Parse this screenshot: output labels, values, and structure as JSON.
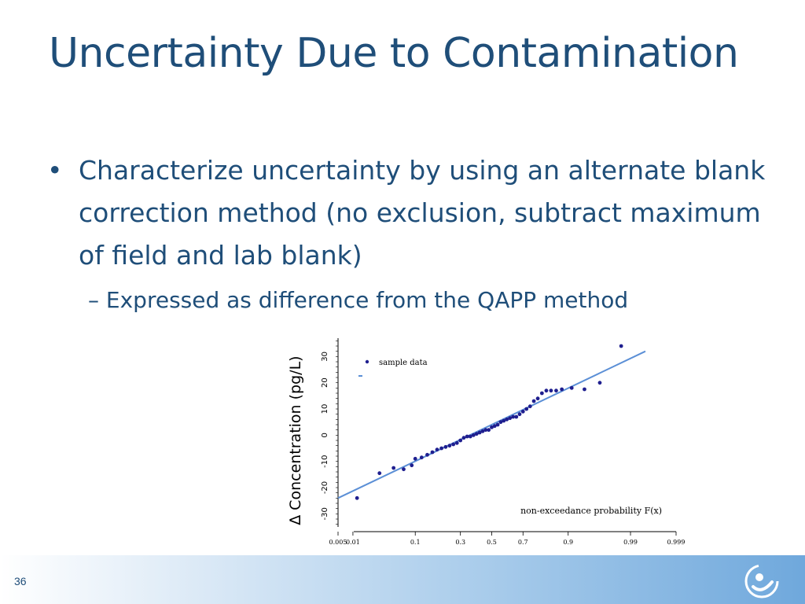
{
  "slide": {
    "title": "Uncertainty Due to Contamination",
    "bullet": "Characterize uncertainty by using an alternate blank correction method (no exclusion, subtract maximum of field and lab blank)",
    "sub_bullet": "Expressed as difference from the QAPP method",
    "slide_number": "36",
    "bullet_glyph": "•",
    "dash_glyph": "–",
    "logo_icon": "swirl-logo-icon"
  },
  "colors": {
    "title": "#1f4e79",
    "points": "#1f1f8f",
    "fit_line": "#5b8fd6",
    "footer_gradient_end": "#6fa8dc"
  },
  "chart_data": {
    "type": "scatter",
    "ylabel": "∆ Concentration (pg/L)",
    "xlabel": "non-exceedance probability F(x)",
    "x_scale": "normal-probability",
    "legend": {
      "entries": [
        "sample data"
      ],
      "position": "top-left"
    },
    "y_ticks": [
      -30,
      -20,
      -10,
      0,
      10,
      20,
      30
    ],
    "x_ticks": [
      0.005,
      0.01,
      0.1,
      0.3,
      0.5,
      0.7,
      0.9,
      0.99,
      0.999
    ],
    "x_tick_labels": [
      "0.005",
      "0.01",
      "0.1",
      "0.3",
      "0.5",
      "0.7",
      "0.9",
      "0.99",
      "0.999"
    ],
    "ylim": [
      -35,
      37
    ],
    "series": [
      {
        "points": [
          [
            0.012,
            -24
          ],
          [
            0.03,
            -14.5
          ],
          [
            0.05,
            -12.5
          ],
          [
            0.07,
            -13
          ],
          [
            0.09,
            -11.5
          ],
          [
            0.1,
            -9
          ],
          [
            0.12,
            -8.5
          ],
          [
            0.14,
            -7.5
          ],
          [
            0.16,
            -6.5
          ],
          [
            0.18,
            -5.5
          ],
          [
            0.2,
            -5
          ],
          [
            0.22,
            -4.5
          ],
          [
            0.24,
            -4
          ],
          [
            0.26,
            -3.5
          ],
          [
            0.28,
            -3
          ],
          [
            0.3,
            -2
          ],
          [
            0.32,
            -1
          ],
          [
            0.34,
            -0.5
          ],
          [
            0.36,
            -0.5
          ],
          [
            0.38,
            0
          ],
          [
            0.4,
            0.5
          ],
          [
            0.42,
            1
          ],
          [
            0.44,
            1.5
          ],
          [
            0.46,
            2
          ],
          [
            0.48,
            2
          ],
          [
            0.5,
            3
          ],
          [
            0.52,
            3.5
          ],
          [
            0.54,
            4
          ],
          [
            0.56,
            5
          ],
          [
            0.58,
            5.5
          ],
          [
            0.6,
            6
          ],
          [
            0.62,
            6.5
          ],
          [
            0.64,
            7
          ],
          [
            0.66,
            7
          ],
          [
            0.68,
            8
          ],
          [
            0.7,
            9
          ],
          [
            0.72,
            10
          ],
          [
            0.74,
            11
          ],
          [
            0.76,
            13
          ],
          [
            0.78,
            14
          ],
          [
            0.8,
            16
          ],
          [
            0.82,
            17
          ],
          [
            0.84,
            17
          ],
          [
            0.86,
            17
          ],
          [
            0.88,
            17.5
          ],
          [
            0.91,
            18
          ],
          [
            0.94,
            17.5
          ],
          [
            0.965,
            20
          ],
          [
            0.985,
            34
          ]
        ]
      },
      {
        "fit_line": [
          [
            0.005,
            -24
          ],
          [
            0.995,
            32
          ]
        ]
      }
    ]
  }
}
